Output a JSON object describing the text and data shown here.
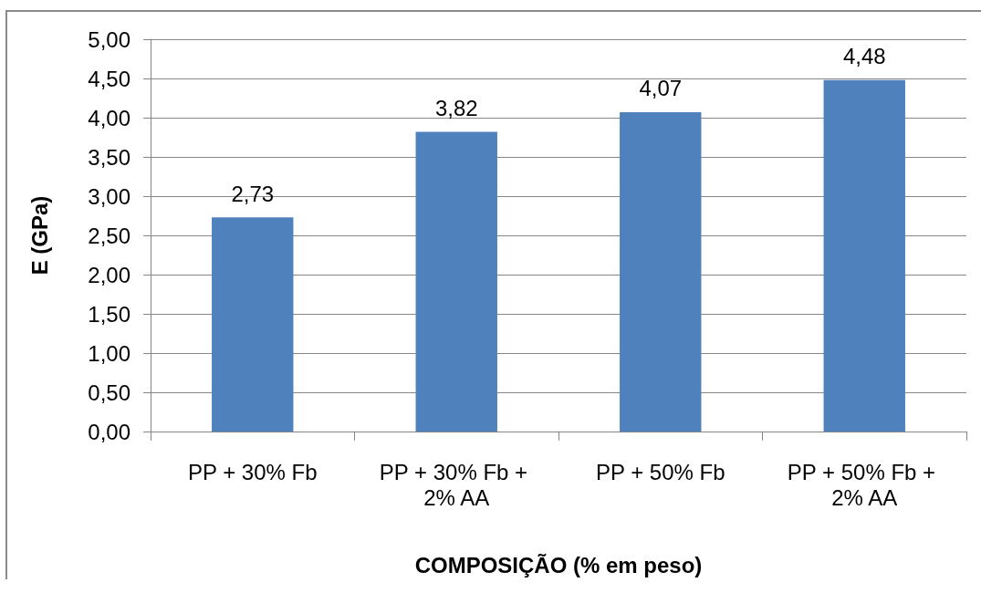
{
  "chart_data": {
    "type": "bar",
    "xlabel": "COMPOSIÇÃO (% em peso)",
    "ylabel": "E (GPa)",
    "categories": [
      "PP + 30% Fb",
      "PP + 30% Fb + 2% AA",
      "PP + 50% Fb",
      "PP + 50% Fb + 2% AA"
    ],
    "values": [
      2.73,
      3.82,
      4.07,
      4.48
    ],
    "value_labels": [
      "2,73",
      "3,82",
      "4,07",
      "4,48"
    ],
    "color": "#4f81bd",
    "ylim": [
      0,
      5
    ],
    "yticks": [
      {
        "value": 0,
        "label": "0,00"
      },
      {
        "value": 0.5,
        "label": "0,50"
      },
      {
        "value": 1,
        "label": "1,00"
      },
      {
        "value": 1.5,
        "label": "1,50"
      },
      {
        "value": 2,
        "label": "2,00"
      },
      {
        "value": 2.5,
        "label": "2,50"
      },
      {
        "value": 3,
        "label": "3,00"
      },
      {
        "value": 3.5,
        "label": "3,50"
      },
      {
        "value": 4,
        "label": "4,00"
      },
      {
        "value": 4.5,
        "label": "4,50"
      },
      {
        "value": 5,
        "label": "5,00"
      }
    ],
    "grid": "y"
  }
}
